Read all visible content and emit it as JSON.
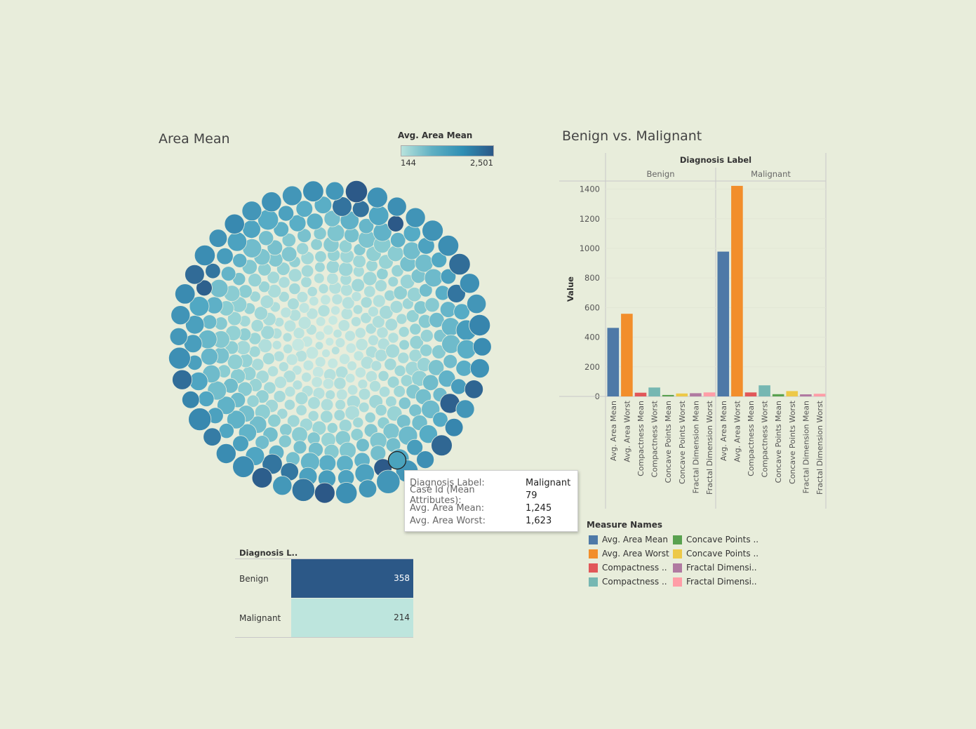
{
  "bubble_chart": {
    "title": "Area Mean",
    "legend_title": "Avg. Area Mean",
    "legend_min": "144",
    "legend_max": "2,501",
    "color_low": "#b8e3dc",
    "color_high": "#2c5887"
  },
  "tooltip": {
    "rows": [
      {
        "key": "Diagnosis Label:",
        "value": "Malignant"
      },
      {
        "key": "Case Id (Mean Attributes):",
        "value": "79"
      },
      {
        "key": "Avg. Area Mean:",
        "value": "1,245"
      },
      {
        "key": "Avg. Area Worst:",
        "value": "1,623"
      }
    ]
  },
  "count_table": {
    "header": "Diagnosis L..",
    "rows": [
      {
        "label": "Benign",
        "value": 358,
        "display": "358",
        "color": "#2c5887",
        "text_color": "#ffffff"
      },
      {
        "label": "Malignant",
        "value": 214,
        "display": "214",
        "color": "#bde5dd",
        "text_color": "#333333"
      }
    ]
  },
  "bar_chart": {
    "title": "Benign vs. Malignant",
    "facet_header": "Diagnosis Label",
    "ylabel": "Value"
  },
  "measure_legend": {
    "title": "Measure Names",
    "items": [
      {
        "label": "Avg. Area Mean",
        "color": "#4e79a7"
      },
      {
        "label": "Avg. Area Worst",
        "color": "#f28e2b"
      },
      {
        "label": "Compactness ..",
        "color": "#e15759"
      },
      {
        "label": "Compactness ..",
        "color": "#76b7b2"
      },
      {
        "label": "Concave Points ..",
        "color": "#59a14f"
      },
      {
        "label": "Concave Points ..",
        "color": "#edc948"
      },
      {
        "label": "Fractal Dimensi..",
        "color": "#b07aa1"
      },
      {
        "label": "Fractal Dimensi..",
        "color": "#ff9da7"
      }
    ]
  },
  "chart_data": {
    "type": "bar",
    "facets": [
      "Benign",
      "Malignant"
    ],
    "categories": [
      "Avg. Area Mean",
      "Avg. Area Worst",
      "Compactness Mean",
      "Compactness Worst",
      "Concave Points Mean",
      "Concave Points Worst",
      "Fractal Dimension Mean",
      "Fractal Dimension Worst"
    ],
    "colors": [
      "#4e79a7",
      "#f28e2b",
      "#e15759",
      "#76b7b2",
      "#59a14f",
      "#edc948",
      "#b07aa1",
      "#ff9da7"
    ],
    "series": [
      {
        "name": "Benign",
        "values": [
          463,
          558,
          25,
          60,
          10,
          20,
          22,
          27
        ]
      },
      {
        "name": "Malignant",
        "values": [
          978,
          1422,
          27,
          75,
          15,
          36,
          14,
          18
        ]
      }
    ],
    "yticks": [
      0,
      200,
      400,
      600,
      800,
      1000,
      1200,
      1400
    ],
    "ylim": [
      0,
      1450
    ],
    "ylabel": "Value"
  }
}
